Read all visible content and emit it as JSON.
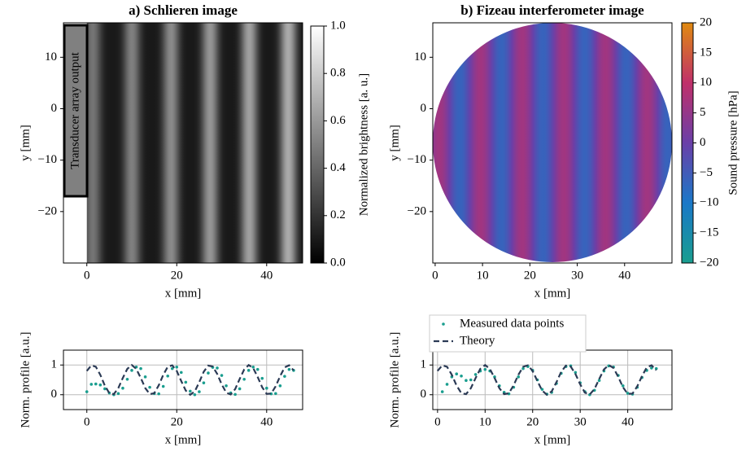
{
  "chart_data": [
    {
      "type": "image",
      "title": "a) Schlieren image",
      "xlabel": "x [mm]",
      "ylabel": "y [mm]",
      "xlim": [
        -5.2,
        48
      ],
      "xticks": [
        0,
        20,
        40
      ],
      "ylim": [
        -30,
        16.7
      ],
      "yticks": [
        {
          "value": -20,
          "label": "−20"
        },
        {
          "value": -10,
          "label": "−10"
        },
        0,
        10
      ],
      "annotation": "Transducer array output",
      "colorbar": {
        "label": "Normalized brightness [a. u.]",
        "lim": [
          0,
          1
        ],
        "ticks": [
          {
            "value": 0,
            "label": "0.0"
          },
          0.2,
          0.4,
          0.6,
          0.8,
          {
            "value": 1,
            "label": "1.0"
          }
        ]
      }
    },
    {
      "type": "image",
      "title": "b) Fizeau interferometer image",
      "xlabel": "x [mm]",
      "ylabel": "y [mm]",
      "xlim": [
        -0.5,
        50
      ],
      "xticks": [
        0,
        10,
        20,
        30,
        40
      ],
      "ylim": [
        -30,
        16.7
      ],
      "yticks": [
        {
          "value": -20,
          "label": "−20"
        },
        {
          "value": -10,
          "label": "−10"
        },
        0,
        10
      ],
      "colorbar": {
        "label": "Sound pressure [hPa]",
        "lim": [
          -20,
          20
        ],
        "ticks": [
          {
            "value": -20,
            "label": "−20"
          },
          {
            "value": -15,
            "label": "−15"
          },
          {
            "value": -10,
            "label": "−10"
          },
          {
            "value": -5,
            "label": "−5"
          },
          0,
          5,
          10,
          15,
          20
        ]
      }
    },
    {
      "type": "line",
      "xlabel": "x [mm]",
      "ylabel": "Norm. profile [a.u.]",
      "grid": true,
      "xlim": [
        -5.2,
        48
      ],
      "xticks": [
        0,
        20,
        40
      ],
      "ylim": [
        -0.5,
        1.5
      ],
      "yticks": [
        0,
        1
      ],
      "x": [
        0,
        1,
        2,
        3,
        4,
        5,
        6,
        7,
        8,
        9,
        10,
        11,
        12,
        13,
        14,
        15,
        16,
        17,
        18,
        19,
        20,
        21,
        22,
        23,
        24,
        25,
        26,
        27,
        28,
        29,
        30,
        31,
        32,
        33,
        34,
        35,
        36,
        37,
        38,
        39,
        40,
        41,
        42,
        43,
        44,
        45,
        46
      ],
      "series": [
        {
          "name": "Measured data points",
          "color": "#1a9e8f",
          "style": "dots",
          "values": [
            0.1,
            0.35,
            0.36,
            0.33,
            0.2,
            0.06,
            0.0,
            0.04,
            0.22,
            0.52,
            0.82,
            0.93,
            0.88,
            0.6,
            0.25,
            0.04,
            0.03,
            0.28,
            0.63,
            0.88,
            0.93,
            0.75,
            0.42,
            0.12,
            0.0,
            0.1,
            0.4,
            0.73,
            0.92,
            0.9,
            0.65,
            0.3,
            0.06,
            0.01,
            0.2,
            0.52,
            0.82,
            0.93,
            0.85,
            0.55,
            0.22,
            0.03,
            0.04,
            0.3,
            0.62,
            0.85,
            0.82
          ]
        },
        {
          "name": "Theory",
          "color": "#2b3a55",
          "style": "dashed",
          "values": [
            0.8,
            0.99,
            0.94,
            0.67,
            0.31,
            0.05,
            0.02,
            0.22,
            0.56,
            0.87,
            1.0,
            0.87,
            0.56,
            0.22,
            0.02,
            0.05,
            0.32,
            0.67,
            0.94,
            0.99,
            0.8,
            0.46,
            0.14,
            0.0,
            0.11,
            0.42,
            0.77,
            0.98,
            0.95,
            0.7,
            0.35,
            0.07,
            0.01,
            0.19,
            0.53,
            0.85,
            1.0,
            0.9,
            0.6,
            0.25,
            0.03,
            0.04,
            0.28,
            0.63,
            0.92,
            0.99,
            0.82
          ]
        }
      ]
    },
    {
      "type": "line",
      "xlabel": "x [mm]",
      "ylabel": "Norm. profile [a.u.]",
      "grid": true,
      "legend": "upper left",
      "xlim": [
        -1,
        49.3
      ],
      "xticks": [
        0,
        10,
        20,
        30,
        40
      ],
      "ylim": [
        -0.5,
        1.5
      ],
      "yticks": [
        0,
        1
      ],
      "x": [
        0,
        1,
        2,
        3,
        4,
        5,
        6,
        7,
        8,
        9,
        10,
        11,
        12,
        13,
        14,
        15,
        16,
        17,
        18,
        19,
        20,
        21,
        22,
        23,
        24,
        25,
        26,
        27,
        28,
        29,
        30,
        31,
        32,
        33,
        34,
        35,
        36,
        37,
        38,
        39,
        40,
        41,
        42,
        43,
        44,
        45,
        46
      ],
      "series": [
        {
          "name": "Measured data points",
          "color": "#1a9e8f",
          "style": "dots",
          "values": [
            null,
            0.1,
            0.35,
            0.6,
            0.7,
            0.63,
            0.48,
            0.5,
            0.68,
            0.8,
            0.85,
            0.8,
            0.6,
            0.3,
            0.08,
            0.03,
            0.25,
            0.6,
            0.88,
            0.95,
            0.82,
            0.5,
            0.18,
            0.02,
            0.08,
            0.38,
            0.72,
            0.95,
            0.97,
            0.75,
            0.4,
            0.1,
            0.0,
            0.15,
            0.48,
            0.8,
            0.97,
            0.93,
            0.65,
            0.3,
            0.05,
            0.02,
            0.25,
            0.58,
            0.82,
            0.9,
            0.88
          ]
        },
        {
          "name": "Theory",
          "color": "#2b3a55",
          "style": "dashed",
          "values": [
            0.8,
            0.99,
            0.94,
            0.67,
            0.31,
            0.05,
            0.02,
            0.22,
            0.56,
            0.87,
            1.0,
            0.87,
            0.56,
            0.22,
            0.02,
            0.05,
            0.32,
            0.67,
            0.94,
            0.99,
            0.8,
            0.46,
            0.14,
            0.0,
            0.11,
            0.42,
            0.77,
            0.98,
            0.95,
            0.7,
            0.35,
            0.07,
            0.01,
            0.19,
            0.53,
            0.85,
            1.0,
            0.9,
            0.6,
            0.25,
            0.03,
            0.04,
            0.28,
            0.63,
            0.92,
            0.99,
            0.82
          ]
        }
      ]
    }
  ]
}
